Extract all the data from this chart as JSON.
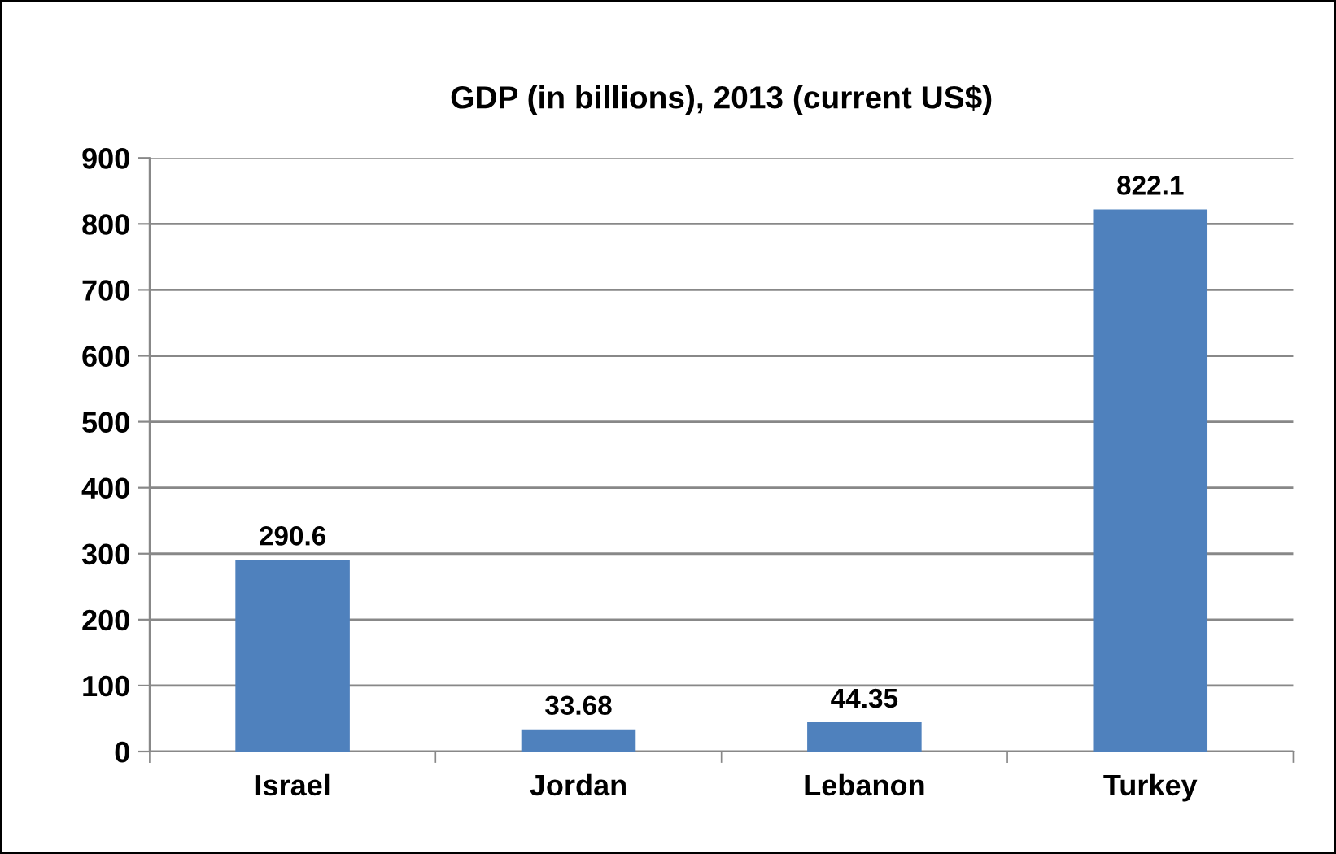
{
  "chart_data": {
    "type": "bar",
    "title": "GDP (in billions), 2013 (current US$)",
    "categories": [
      "Israel",
      "Jordan",
      "Lebanon",
      "Turkey"
    ],
    "values": [
      290.6,
      33.68,
      44.35,
      822.1
    ],
    "color": "#4f81bd",
    "ylim": [
      0,
      900
    ],
    "yticks": [
      0,
      100,
      200,
      300,
      400,
      500,
      600,
      700,
      800,
      900
    ],
    "grid": "y",
    "data_labels": true
  }
}
